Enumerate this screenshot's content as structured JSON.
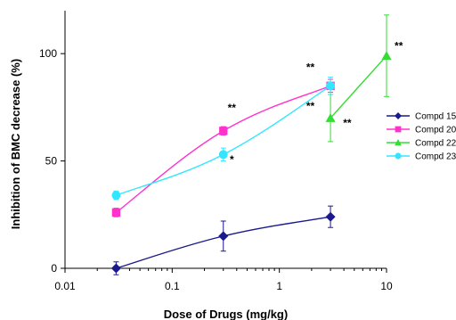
{
  "chart_data": {
    "type": "line",
    "xscale": "log",
    "xlim": [
      0.01,
      10
    ],
    "ylim": [
      0,
      120
    ],
    "xlabel": "Dose of Drugs (mg/kg)",
    "ylabel": "Inhibition of BMC decrease (%)",
    "x_ticks": [
      "0.01",
      "0.1",
      "1",
      "10"
    ],
    "y_ticks": [
      "0",
      "50",
      "100"
    ],
    "legend_position": "right",
    "series": [
      {
        "name": "Compd 15",
        "color": "#1a1a8c",
        "marker": "diamond",
        "x": [
          0.03,
          0.3,
          3
        ],
        "y": [
          0,
          15,
          24
        ],
        "err": [
          3,
          7,
          5
        ]
      },
      {
        "name": "Compd 20",
        "color": "#ff33cc",
        "marker": "square",
        "x": [
          0.03,
          0.3,
          3
        ],
        "y": [
          26,
          64,
          85
        ],
        "err": [
          2,
          2,
          3
        ]
      },
      {
        "name": "Compd 22",
        "color": "#33dd33",
        "marker": "triangle",
        "x": [
          3,
          10
        ],
        "y": [
          70,
          99
        ],
        "err": [
          11,
          19
        ]
      },
      {
        "name": "Compd 23",
        "color": "#33e6ff",
        "marker": "circle",
        "x": [
          0.03,
          0.3,
          3
        ],
        "y": [
          34,
          53,
          85
        ],
        "err": [
          2,
          3,
          4
        ]
      }
    ],
    "annotations": [
      {
        "text": "**",
        "x": 0.36,
        "y": 73
      },
      {
        "text": "*",
        "x": 0.36,
        "y": 49
      },
      {
        "text": "**",
        "x": 1.95,
        "y": 92
      },
      {
        "text": "**",
        "x": 1.95,
        "y": 74
      },
      {
        "text": "**",
        "x": 4.3,
        "y": 66
      },
      {
        "text": "**",
        "x": 13,
        "y": 102
      }
    ]
  }
}
